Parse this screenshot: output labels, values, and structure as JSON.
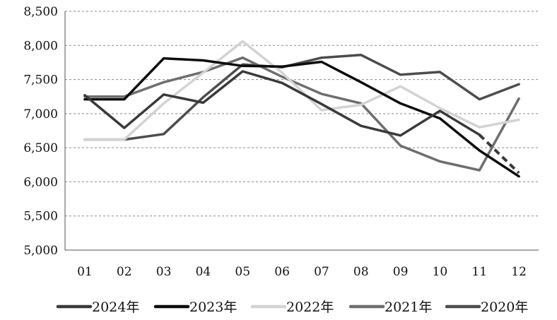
{
  "chart_data": {
    "type": "line",
    "title": "",
    "xlabel": "",
    "ylabel": "",
    "categories": [
      "01",
      "02",
      "03",
      "04",
      "05",
      "06",
      "07",
      "08",
      "09",
      "10",
      "11",
      "12"
    ],
    "ylim": [
      5000,
      8500
    ],
    "yticks": [
      5000,
      5500,
      6000,
      6500,
      7000,
      7500,
      8000,
      8500
    ],
    "ytick_labels": [
      "5,000",
      "5,500",
      "6,000",
      "6,500",
      "7,000",
      "7,500",
      "8,000",
      "8,500"
    ],
    "grid": "horizontal-dashed",
    "legend_position": "bottom",
    "series": [
      {
        "name": "2024年",
        "color": "#3a3a3a",
        "values": [
          7270,
          6790,
          7280,
          7160,
          7620,
          7450,
          7140,
          6820,
          6680,
          7040,
          6690,
          null
        ],
        "projection": {
          "from_index": 10,
          "to_index": 11,
          "to_value": 6130
        }
      },
      {
        "name": "2023年",
        "color": "#0d0d0d",
        "values": [
          7210,
          7210,
          7810,
          7780,
          7700,
          7690,
          7760,
          7460,
          7150,
          6930,
          6460,
          6080
        ]
      },
      {
        "name": "2022年",
        "color": "#d3d3d3",
        "values": [
          6620,
          6620,
          7150,
          7600,
          8060,
          7600,
          7050,
          7130,
          7400,
          7080,
          6800,
          6910
        ]
      },
      {
        "name": "2021年",
        "color": "#6e6e6e",
        "values": [
          7250,
          7250,
          7460,
          7610,
          7820,
          7540,
          7290,
          7150,
          6530,
          6300,
          6170,
          7220
        ]
      },
      {
        "name": "2020年",
        "color": "#4d4d4d",
        "values": [
          6620,
          6620,
          6700,
          7240,
          7720,
          7680,
          7820,
          7860,
          7570,
          7610,
          7210,
          7430
        ]
      }
    ]
  }
}
